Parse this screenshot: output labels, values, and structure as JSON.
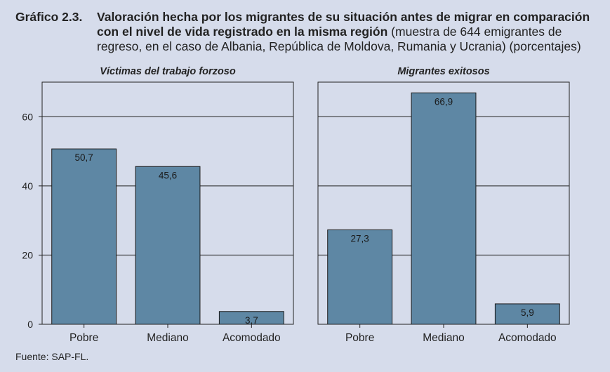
{
  "title": {
    "number": "Gráfico 2.3.",
    "bold": "Valoración hecha por los migrantes de su situación antes de migrar en comparación con el nivel de vida registrado en la misma región",
    "rest": " (muestra de 644 emigrantes de regreso, en el caso de Albania, República de Moldova, Rumania y Ucrania) (porcentajes)"
  },
  "source": "Fuente: SAP-FL.",
  "colors": {
    "bar": "#5e87a4",
    "background": "#d6dceb"
  },
  "chart_data": [
    {
      "type": "bar",
      "title": "Víctimas del trabajo forzoso",
      "categories": [
        "Pobre",
        "Mediano",
        "Acomodado"
      ],
      "values": [
        50.7,
        45.6,
        3.7
      ],
      "labels": [
        "50,7",
        "45,6",
        "3,7"
      ],
      "ylim": [
        0,
        70
      ],
      "yticks": [
        0,
        20,
        40,
        60
      ],
      "grid": true
    },
    {
      "type": "bar",
      "title": "Migrantes exitosos",
      "categories": [
        "Pobre",
        "Mediano",
        "Acomodado"
      ],
      "values": [
        27.3,
        66.9,
        5.9
      ],
      "labels": [
        "27,3",
        "66,9",
        "5,9"
      ],
      "ylim": [
        0,
        70
      ],
      "yticks": [
        0,
        20,
        40,
        60
      ],
      "grid": true
    }
  ]
}
